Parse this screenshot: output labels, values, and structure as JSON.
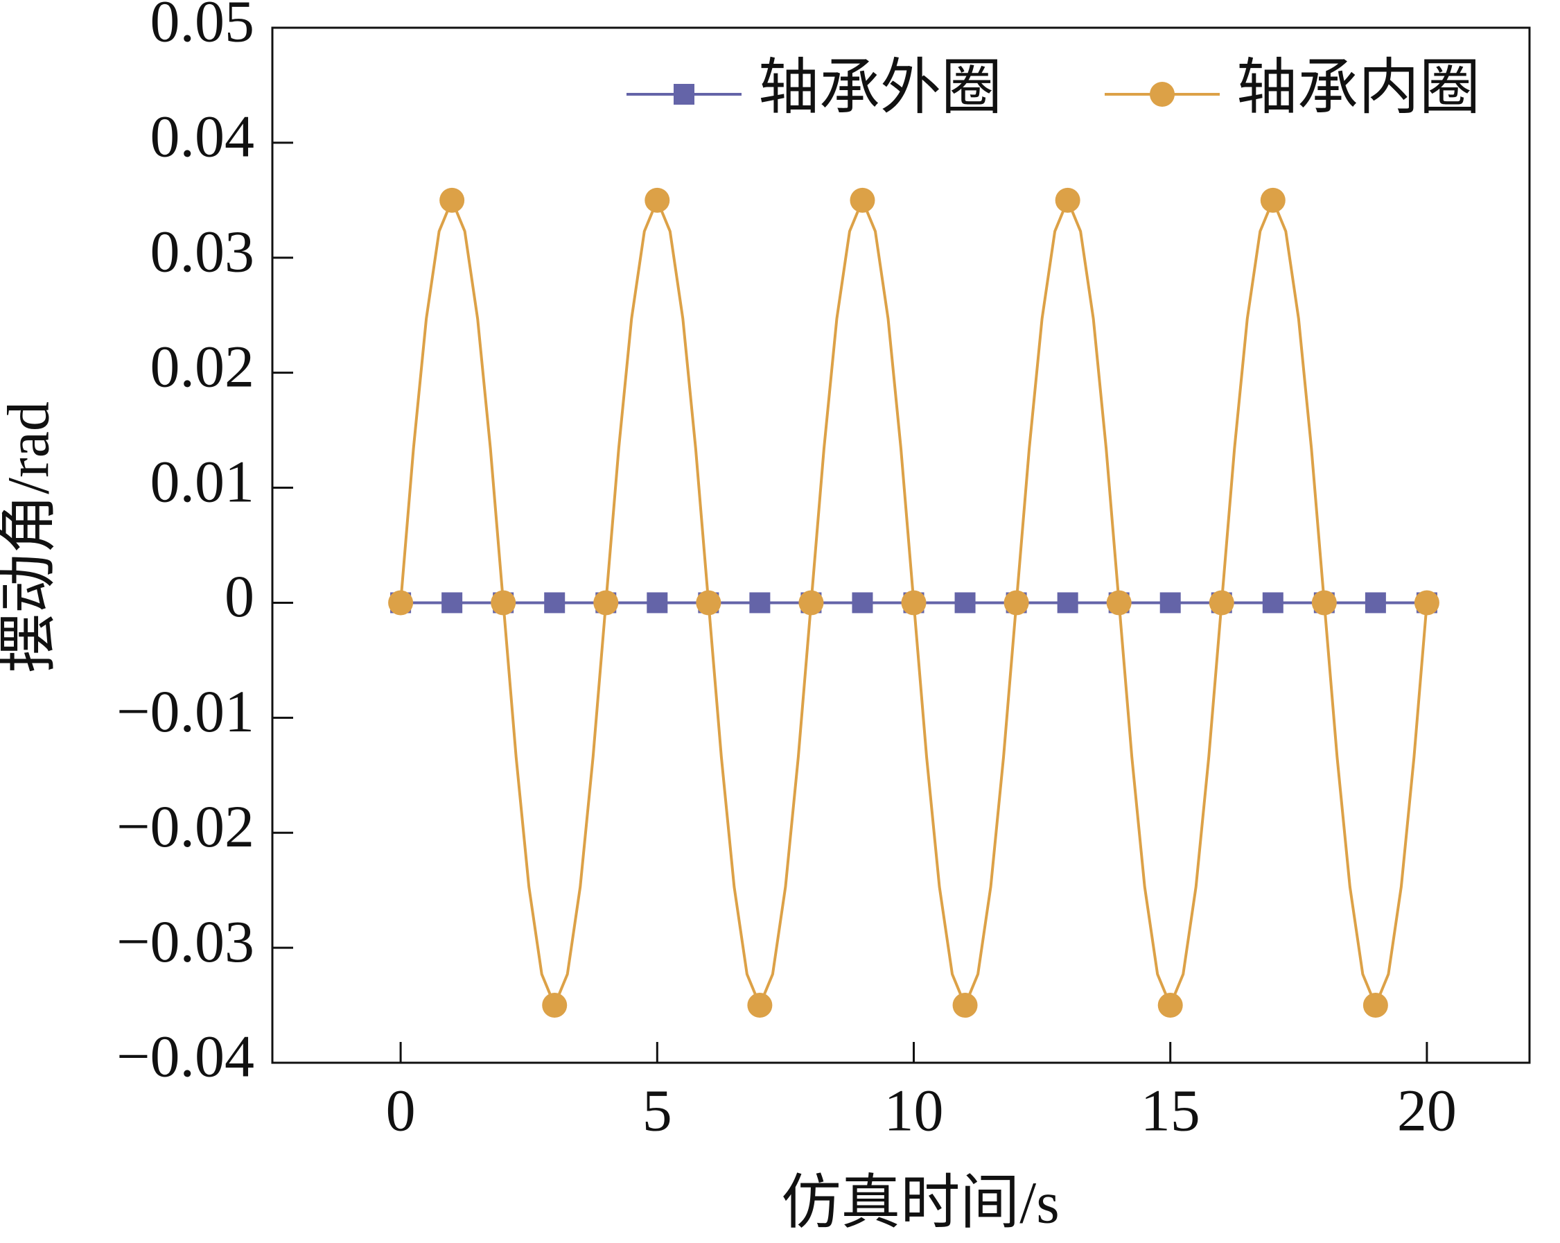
{
  "chart_data": {
    "type": "line",
    "x_label": "仿真时间/s",
    "y_label": "摆动角/rad",
    "x": [
      0,
      0.25,
      0.5,
      0.75,
      1,
      1.25,
      1.5,
      1.75,
      2,
      2.25,
      2.5,
      2.75,
      3,
      3.25,
      3.5,
      3.75,
      4,
      4.25,
      4.5,
      4.75,
      5,
      5.25,
      5.5,
      5.75,
      6,
      6.25,
      6.5,
      6.75,
      7,
      7.25,
      7.5,
      7.75,
      8,
      8.25,
      8.5,
      8.75,
      9,
      9.25,
      9.5,
      9.75,
      10,
      10.25,
      10.5,
      10.75,
      11,
      11.25,
      11.5,
      11.75,
      12,
      12.25,
      12.5,
      12.75,
      13,
      13.25,
      13.5,
      13.75,
      14,
      14.25,
      14.5,
      14.75,
      15,
      15.25,
      15.5,
      15.75,
      16,
      16.25,
      16.5,
      16.75,
      17,
      17.25,
      17.5,
      17.75,
      18,
      18.25,
      18.5,
      18.75,
      19,
      19.25,
      19.5,
      19.75,
      20
    ],
    "series": [
      {
        "name": "轴承外圈",
        "color": "#6464a8",
        "marker": "square",
        "values": [
          0,
          0,
          0,
          0,
          0,
          0,
          0,
          0,
          0,
          0,
          0,
          0,
          0,
          0,
          0,
          0,
          0,
          0,
          0,
          0,
          0,
          0,
          0,
          0,
          0,
          0,
          0,
          0,
          0,
          0,
          0,
          0,
          0,
          0,
          0,
          0,
          0,
          0,
          0,
          0,
          0,
          0,
          0,
          0,
          0,
          0,
          0,
          0,
          0,
          0,
          0,
          0,
          0,
          0,
          0,
          0,
          0,
          0,
          0,
          0,
          0,
          0,
          0,
          0,
          0,
          0,
          0,
          0,
          0,
          0,
          0,
          0,
          0,
          0,
          0,
          0,
          0,
          0,
          0,
          0,
          0
        ]
      },
      {
        "name": "轴承内圈",
        "color": "#dca147",
        "marker": "circle",
        "values": [
          0,
          0.0134,
          0.0247,
          0.0323,
          0.035,
          0.0323,
          0.0247,
          0.0134,
          0,
          -0.0134,
          -0.0247,
          -0.0323,
          -0.035,
          -0.0323,
          -0.0247,
          -0.0134,
          0,
          0.0134,
          0.0247,
          0.0323,
          0.035,
          0.0323,
          0.0247,
          0.0134,
          0,
          -0.0134,
          -0.0247,
          -0.0323,
          -0.035,
          -0.0323,
          -0.0247,
          -0.0134,
          0,
          0.0134,
          0.0247,
          0.0323,
          0.035,
          0.0323,
          0.0247,
          0.0134,
          0,
          -0.0134,
          -0.0247,
          -0.0323,
          -0.035,
          -0.0323,
          -0.0247,
          -0.0134,
          0,
          0.0134,
          0.0247,
          0.0323,
          0.035,
          0.0323,
          0.0247,
          0.0134,
          0,
          -0.0134,
          -0.0247,
          -0.0323,
          -0.035,
          -0.0323,
          -0.0247,
          -0.0134,
          0,
          0.0134,
          0.0247,
          0.0323,
          0.035,
          0.0323,
          0.0247,
          0.0134,
          0,
          -0.0134,
          -0.0247,
          -0.0323,
          -0.035,
          -0.0323,
          -0.0247,
          -0.0134,
          0
        ]
      }
    ],
    "xlim": [
      -2.5,
      22
    ],
    "xticks": [
      0,
      5,
      10,
      15,
      20
    ],
    "ylim": [
      -0.04,
      0.05
    ],
    "yticks": [
      {
        "value": -0.04,
        "label": "−0.04"
      },
      {
        "value": -0.03,
        "label": "−0.03"
      },
      {
        "value": -0.02,
        "label": "−0.02"
      },
      {
        "value": -0.01,
        "label": "−0.01"
      },
      0,
      0.01,
      0.02,
      0.03,
      0.04,
      0.05
    ],
    "legend": "upper right",
    "grid": false
  }
}
